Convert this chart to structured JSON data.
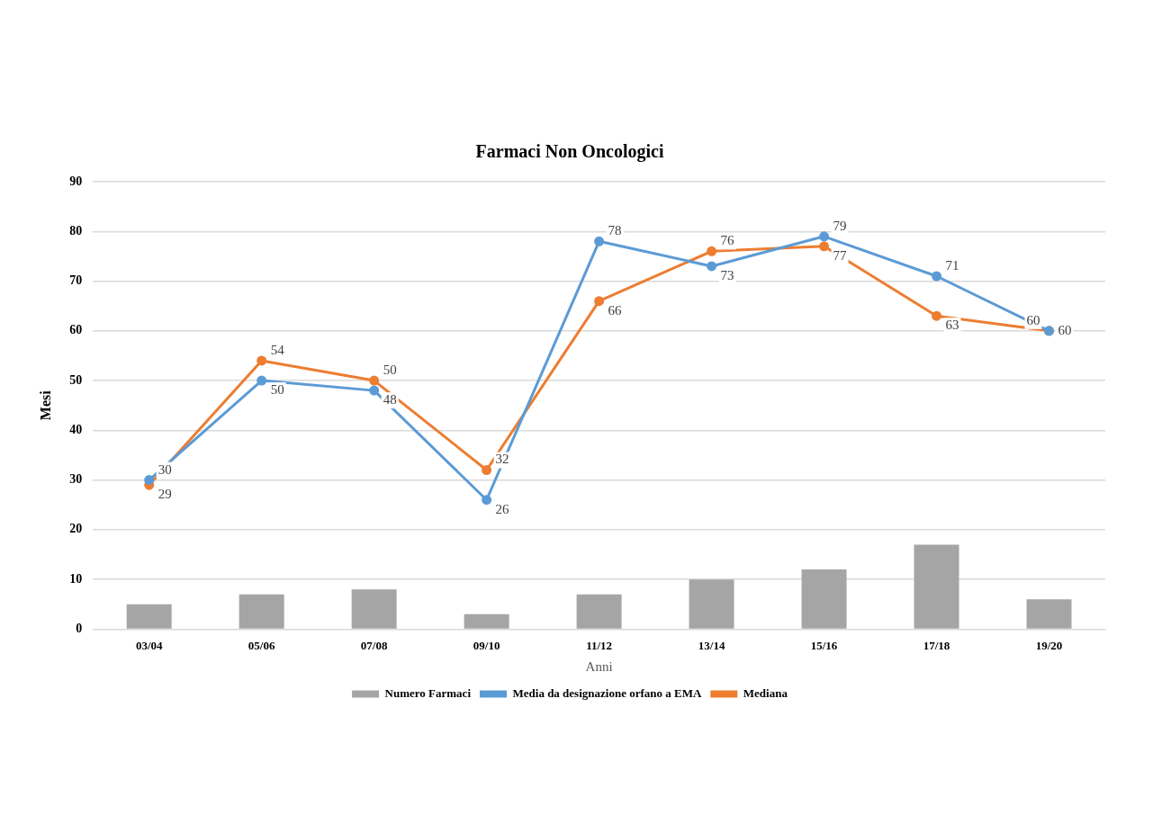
{
  "chart_data": {
    "type": "bar",
    "title": "Farmaci Non Oncologici",
    "xlabel": "Anni",
    "ylabel": "Mesi",
    "categories": [
      "03/04",
      "05/06",
      "07/08",
      "09/10",
      "11/12",
      "13/14",
      "15/16",
      "17/18",
      "19/20"
    ],
    "series": [
      {
        "name": "Numero Farmaci",
        "color": "#a5a5a5",
        "values": [
          5,
          7,
          8,
          3,
          7,
          10,
          12,
          17,
          6
        ]
      },
      {
        "name": "Media da designazione orfano a EMA",
        "type": "line",
        "color": "#5b9bd5",
        "values": [
          30,
          50,
          48,
          26,
          78,
          73,
          79,
          71,
          60
        ],
        "value_labels": [
          "30",
          "50",
          "48",
          "26",
          "78",
          "73",
          "79",
          "71",
          "60"
        ]
      },
      {
        "name": "Mediana",
        "type": "line",
        "color": "#ed7d31",
        "values": [
          29,
          54,
          50,
          32,
          66,
          76,
          77,
          63,
          60
        ],
        "value_labels": [
          "29",
          "54",
          "50",
          "32",
          "66",
          "76",
          "77",
          "63",
          "60"
        ]
      }
    ],
    "ylim": [
      0,
      90
    ],
    "yticks": [
      0,
      10,
      20,
      30,
      40,
      50,
      60,
      70,
      80,
      90
    ],
    "grid": "y",
    "legend": "bottom",
    "marker": "circle",
    "line_style": "solid"
  }
}
